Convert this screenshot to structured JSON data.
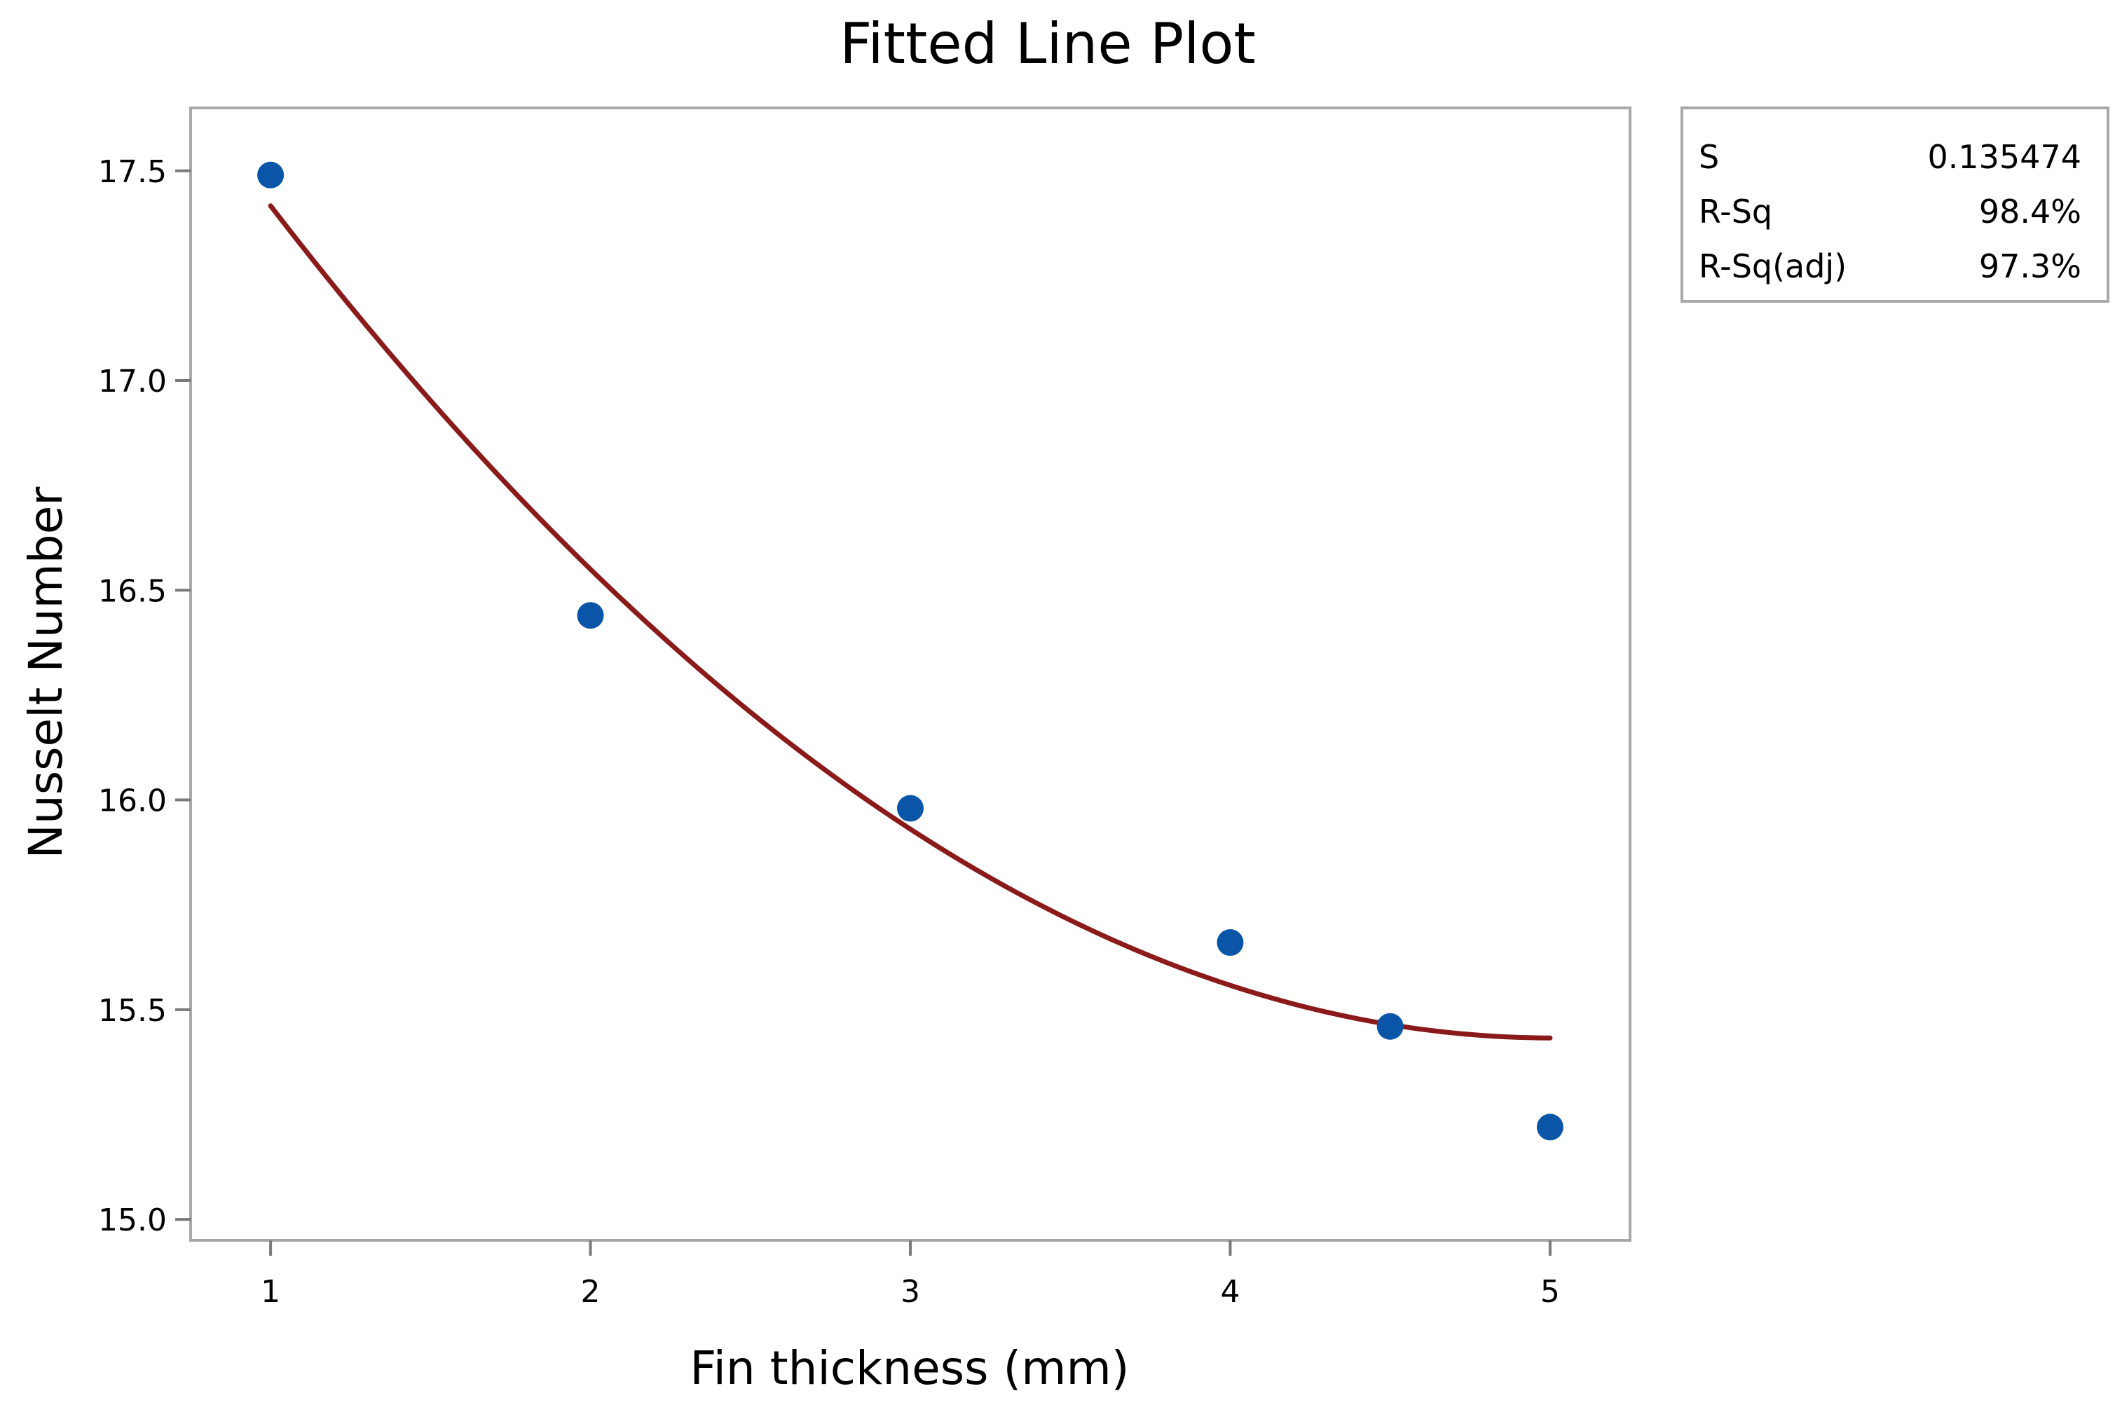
{
  "chart_data": {
    "type": "scatter",
    "title": "Fitted Line Plot",
    "xlabel": "Fin thickness (mm)",
    "ylabel": "Nusselt Number",
    "xlim": [
      0.75,
      5.25
    ],
    "ylim": [
      14.95,
      17.65
    ],
    "x_ticks": [
      1,
      2,
      3,
      4,
      5
    ],
    "y_ticks": [
      15.0,
      15.5,
      16.0,
      16.5,
      17.0,
      17.5
    ],
    "y_tick_labels": [
      "15.0",
      "15.5",
      "16.0",
      "16.5",
      "17.0",
      "17.5"
    ],
    "grid": false,
    "series": [
      {
        "x": [
          1,
          2,
          3,
          4,
          4.5,
          5
        ],
        "y": [
          17.49,
          16.44,
          15.98,
          15.66,
          15.46,
          15.22
        ],
        "color": "#0a55a8"
      }
    ],
    "fit": {
      "type": "quadratic",
      "coefficients": [
        18.53,
        -1.237,
        0.1235
      ],
      "x_range": [
        1,
        5
      ],
      "color": "#8b1a1a"
    },
    "stats": [
      {
        "label": "S",
        "value": "0.135474"
      },
      {
        "label": "R-Sq",
        "value": "98.4%"
      },
      {
        "label": "R-Sq(adj)",
        "value": "97.3%"
      }
    ]
  }
}
